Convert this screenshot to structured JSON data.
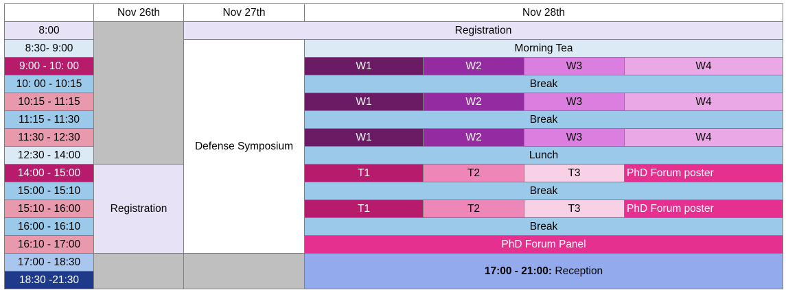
{
  "headers": {
    "col1": "Nov 26th",
    "col2": "Nov 27th",
    "col3": "Nov 28th"
  },
  "times": [
    "8:00",
    "8:30- 9:00",
    "9:00 - 10: 00",
    "10: 00 - 10:15",
    "10:15 - 11:15",
    "11:15 - 11:30",
    "11:30 - 12:30",
    "12:30 - 14:00",
    "14:00 - 15:00",
    "15:00 - 15:10",
    "15:10 - 16:00",
    "16:00 - 16:10",
    "16:10 - 17:00",
    "17:00 - 18:30",
    "18:30 -21:30"
  ],
  "events": {
    "registration_top": "Registration",
    "morning_tea": "Morning Tea",
    "break": "Break",
    "lunch": "Lunch",
    "w1": "W1",
    "w2": "W2",
    "w3": "W3",
    "w4": "W4",
    "t1": "T1",
    "t2": "T2",
    "t3": "T3",
    "phd_poster": "PhD Forum poster",
    "phd_panel": "PhD Forum Panel",
    "defense_symposium": "Defense Symposium",
    "registration_nov26": "Registration",
    "reception_time": "17:00 - 21:00:",
    "reception_label": " Reception"
  },
  "colors": {
    "workshop_w1": "#6a1b64",
    "workshop_w2": "#952ba0",
    "workshop_w3": "#dc7ee0",
    "workshop_w4": "#eaa8e6",
    "tutorial_t1": "#b71c6c",
    "tutorial_t2": "#ee86b8",
    "tutorial_t3": "#f9d1e6",
    "phd_forum": "#e5308f",
    "break": "#9bc9e9",
    "reception": "#93aaed",
    "closed": "#bfbfbf"
  }
}
